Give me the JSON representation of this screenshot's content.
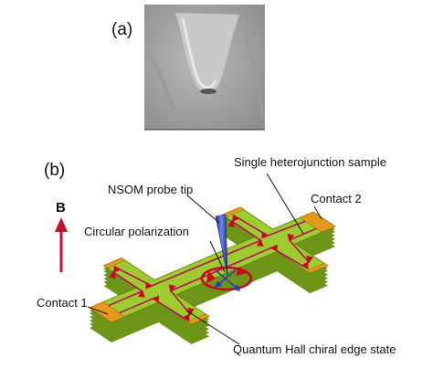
{
  "figure": {
    "panel_a": {
      "label": "(a)"
    },
    "panel_b": {
      "label": "(b)",
      "field_label": "B",
      "annotations": [
        "Single heterojunction sample",
        "NSOM probe tip",
        "Contact 2",
        "Circular polarization",
        "Contact 1",
        "Quantum Hall chiral edge state"
      ]
    }
  }
}
